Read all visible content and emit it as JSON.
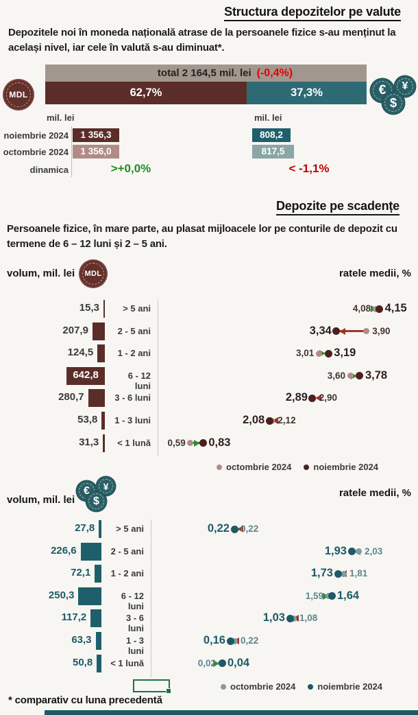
{
  "s1": {
    "title": "Structura depozitelor pe valute",
    "intro": "Depozitele noi în moneda națională atrase de la persoanele fizice s-au menținut la același nivel, iar cele în valută s-au diminuat*.",
    "total_label": "total 2 164,5 mil. lei",
    "total_delta": "(-0,4%)",
    "mdl_share": "62,7%",
    "fx_share": "37,3%",
    "coin_mdl": "MDL",
    "unit_mdl": "mil. lei",
    "unit_fx": "mil. lei",
    "row_nov_label": "noiembrie 2024",
    "row_oct_label": "octombrie 2024",
    "row_din_label": "dinamica",
    "mdl_nov": "1 356,3",
    "mdl_oct": "1 356,0",
    "fx_nov": "808,2",
    "fx_oct": "817,5",
    "mdl_din": ">+0,0%",
    "fx_din": "< -1,1%"
  },
  "s2": {
    "title": "Depozite pe scadențe",
    "intro": "Persoanele fizice, în mare parte, au plasat mijloacele lor pe conturile de depozit cu termene de 6 – 12 luni și 2 – 5 ani.",
    "volume_label": "volum, mil. lei",
    "rates_label": "ratele medii, %",
    "coin_mdl": "MDL"
  },
  "s3": {
    "volume_label": "volum, mil. lei",
    "rates_label": "ratele medii, %"
  },
  "legend": {
    "oct": "octombrie 2024",
    "nov": "noiembrie 2024"
  },
  "coins": {
    "euro": "€",
    "yen": "¥",
    "dollar": "$"
  },
  "footnote": "* comparativ cu luna precedentă",
  "chart_data": [
    {
      "id": "structure",
      "type": "bar",
      "title": "Structura depozitelor pe valute",
      "total_label": "total 2 164,5 mil. lei",
      "total_mil_lei": 2164.5,
      "total_change_pct": -0.4,
      "series": [
        {
          "name": "moneda națională (MDL)",
          "share_pct": 62.7,
          "noiembrie_2024": 1356.3,
          "octombrie_2024": 1356.0,
          "dinamica_pct": "+0,0%"
        },
        {
          "name": "valută",
          "share_pct": 37.3,
          "noiembrie_2024": 808.2,
          "octombrie_2024": 817.5,
          "dinamica_pct": "-1,1%"
        }
      ]
    },
    {
      "id": "mdl",
      "type": "bar",
      "title": "Depozite pe scadențe – moneda națională (MDL)",
      "xlabel": "volum, mil. lei",
      "x2label": "ratele medii, %",
      "categories": [
        "> 5 ani",
        "2 - 5 ani",
        "1 - 2 ani",
        "6 - 12 luni",
        "3 - 6 luni",
        "1 - 3 luni",
        "< 1 lună"
      ],
      "volumes_mil_lei": [
        15.3,
        207.9,
        124.5,
        642.8,
        280.7,
        53.8,
        31.3
      ],
      "volume_labels": [
        "15,3",
        "207,9",
        "124,5",
        "642,8",
        "280,7",
        "53,8",
        "31,3"
      ],
      "rates_oct": [
        4.08,
        3.9,
        3.01,
        3.6,
        2.9,
        2.12,
        0.59
      ],
      "rates_nov": [
        4.15,
        3.34,
        3.19,
        3.78,
        2.89,
        2.08,
        0.83
      ],
      "rate_labels_oct": [
        "4,08",
        "3,90",
        "3,01",
        "3,60",
        "2,90",
        "2,12",
        "0,59"
      ],
      "rate_labels_nov": [
        "4,15",
        "3,34",
        "3,19",
        "3,78",
        "2,89",
        "2,08",
        "0,83"
      ],
      "directions": [
        "up",
        "down",
        "up",
        "up",
        "down",
        "down",
        "up"
      ],
      "legend": [
        "octombrie 2024",
        "noiembrie 2024"
      ],
      "colors": {
        "bar": "#5a2d28",
        "oct_dot": "#b18c86",
        "nov_dot": "#4a211e",
        "up": "#2e8b2e",
        "down": "#9e352b",
        "value_text": "#3a3a3a",
        "nov_text": "#2f1e1c",
        "oct_text": "#44322f"
      }
    },
    {
      "id": "fx",
      "type": "bar",
      "title": "Depozite pe scadențe – valută",
      "xlabel": "volum, mil. lei",
      "x2label": "ratele medii, %",
      "categories": [
        "> 5 ani",
        "2 - 5 ani",
        "1 - 2 ani",
        "6 - 12 luni",
        "3 - 6 luni",
        "1 - 3 luni",
        "< 1 lună"
      ],
      "volumes_mil_lei": [
        27.8,
        226.6,
        72.1,
        250.3,
        117.2,
        63.3,
        50.8
      ],
      "volume_labels": [
        "27,8",
        "226,6",
        "72,1",
        "250,3",
        "117,2",
        "63,3",
        "50,8"
      ],
      "rates_oct": [
        0.22,
        2.03,
        1.81,
        1.59,
        1.08,
        0.22,
        0.02
      ],
      "rates_nov": [
        0.22,
        1.93,
        1.73,
        1.64,
        1.03,
        0.16,
        0.04
      ],
      "rate_labels_oct": [
        "0,22",
        "2,03",
        "1,81",
        "1,59",
        "1,08",
        "0,22",
        "0,02"
      ],
      "rate_labels_nov": [
        "0,22",
        "1,93",
        "1,73",
        "1,64",
        "1,03",
        "0,16",
        "0,04"
      ],
      "directions": [
        "down",
        "down",
        "down",
        "up",
        "down",
        "down",
        "up"
      ],
      "legend": [
        "octombrie 2024",
        "noiembrie 2024"
      ],
      "colors": {
        "bar": "#1f5f6b",
        "oct_dot": "#7f9da0",
        "nov_dot": "#1d5a66",
        "up": "#2e8b2e",
        "down": "#9e352b",
        "value_text": "#1d5a66",
        "nov_text": "#1d5a66",
        "oct_text": "#5f868c"
      }
    }
  ]
}
